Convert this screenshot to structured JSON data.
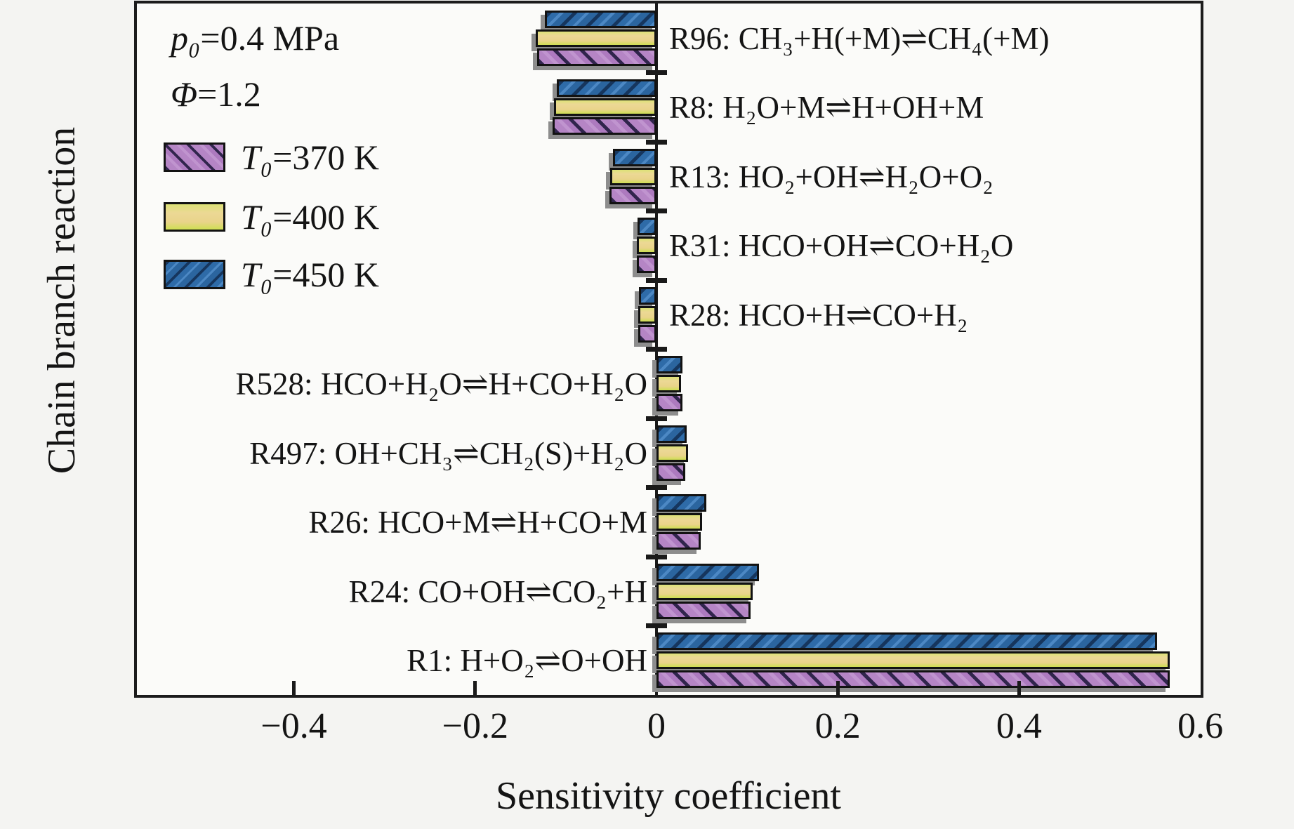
{
  "page": {
    "y_axis_title": "Chain branch reaction",
    "x_axis_title": "Sensitivity coefficient",
    "annotations": [
      {
        "sym": "p₀",
        "rest": "=0.4 MPa"
      },
      {
        "sym": "Φ",
        "rest": "=1.2"
      }
    ],
    "legend": [
      {
        "sym": "T₀",
        "rest": "=370 K"
      },
      {
        "sym": "T₀",
        "rest": "=400 K"
      },
      {
        "sym": "T₀",
        "rest": "=450 K"
      }
    ]
  },
  "chart_data": {
    "type": "bar",
    "orientation": "horizontal",
    "title": "",
    "xlabel": "Sensitivity coefficient",
    "ylabel": "Chain branch reaction",
    "xlim": [
      -0.587,
      0.6
    ],
    "xticks": [
      -0.4,
      -0.2,
      0,
      0.2,
      0.4,
      0.6
    ],
    "xtick_labels": [
      "−0.4",
      "−0.2",
      "0",
      "0.2",
      "0.4",
      "0.6"
    ],
    "inner_ticks": [
      -0.4,
      -0.2,
      0.2,
      0.4
    ],
    "grid": false,
    "legend_position": "top-left-inside",
    "bar_draw_order_top_to_bottom": [
      "T₀=450 K",
      "T₀=400 K",
      "T₀=370 K"
    ],
    "categories": [
      {
        "id": "R96",
        "label": "R96: CH₃+H(+M)⇌CH₄(+M)",
        "label_side": "right"
      },
      {
        "id": "R8",
        "label": "R8: H₂O+M⇌H+OH+M",
        "label_side": "right"
      },
      {
        "id": "R13",
        "label": "R13: HO₂+OH⇌H₂O+O₂",
        "label_side": "right"
      },
      {
        "id": "R31",
        "label": "R31: HCO+OH⇌CO+H₂O",
        "label_side": "right"
      },
      {
        "id": "R28",
        "label": "R28: HCO+H⇌CO+H₂",
        "label_side": "right"
      },
      {
        "id": "R528",
        "label": "R528: HCO+H₂O⇌H+CO+H₂O",
        "label_side": "left"
      },
      {
        "id": "R497",
        "label": "R497: OH+CH₃⇌CH₂(S)+H₂O",
        "label_side": "left"
      },
      {
        "id": "R26",
        "label": "R26: HCO+M⇌H+CO+M",
        "label_side": "left"
      },
      {
        "id": "R24",
        "label": "R24: CO+OH⇌CO₂+H",
        "label_side": "left"
      },
      {
        "id": "R1",
        "label": "R1: H+O₂⇌O+OH",
        "label_side": "left"
      }
    ],
    "series": [
      {
        "name": "T₀=370 K",
        "key": "s370",
        "fill": "#b383c4",
        "hatch": "\\",
        "hatch_color": "#31254d",
        "values": [
          -0.132,
          -0.115,
          -0.052,
          -0.022,
          -0.02,
          0.029,
          0.032,
          0.049,
          0.104,
          0.566
        ]
      },
      {
        "name": "T₀=400 K",
        "key": "s400",
        "fill": "#e9d58b",
        "hatch": "none",
        "edge_tint": "#cede52",
        "values": [
          -0.133,
          -0.113,
          -0.051,
          -0.022,
          -0.02,
          0.027,
          0.035,
          0.05,
          0.106,
          0.566
        ]
      },
      {
        "name": "T₀=450 K",
        "key": "s450",
        "fill": "#2e6ba8",
        "hatch": "/",
        "hatch_color": "#16365e",
        "values": [
          -0.123,
          -0.11,
          -0.048,
          -0.021,
          -0.019,
          0.029,
          0.033,
          0.055,
          0.113,
          0.552
        ]
      }
    ]
  }
}
